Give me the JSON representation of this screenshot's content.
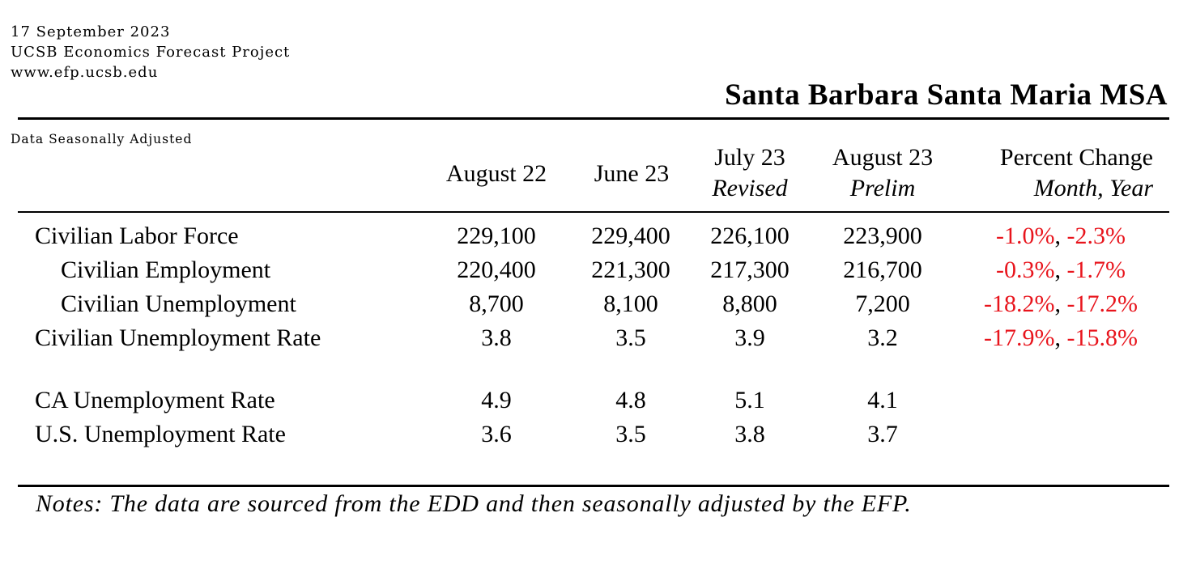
{
  "header": {
    "date": "17 September 2023",
    "org": "UCSB Economics Forecast Project",
    "url": "www.efp.ucsb.edu",
    "title": "Santa Barbara Santa Maria MSA"
  },
  "table": {
    "adjustment_note": "Data Seasonally Adjusted",
    "columns": [
      {
        "label": "August 22",
        "sub": ""
      },
      {
        "label": "June 23",
        "sub": ""
      },
      {
        "label": "July 23",
        "sub": "Revised"
      },
      {
        "label": "August 23",
        "sub": "Prelim"
      },
      {
        "label": "Percent Change",
        "sub": "Month, Year"
      }
    ],
    "rows": [
      {
        "label": "Civilian Labor Force",
        "values": [
          "229,100",
          "229,400",
          "226,100",
          "223,900"
        ],
        "pct_month": "-1.0%",
        "pct_year": "-2.3%"
      },
      {
        "label": "Civilian Employment",
        "values": [
          "220,400",
          "221,300",
          "217,300",
          "216,700"
        ],
        "pct_month": "-0.3%",
        "pct_year": "-1.7%"
      },
      {
        "label": "Civilian Unemployment",
        "values": [
          "8,700",
          "8,100",
          "8,800",
          "7,200"
        ],
        "pct_month": "-18.2%",
        "pct_year": "-17.2%"
      },
      {
        "label": "Civilian Unemployment Rate",
        "values": [
          "3.8",
          "3.5",
          "3.9",
          "3.2"
        ],
        "pct_month": "-17.9%",
        "pct_year": "-15.8%"
      },
      {
        "label": "CA Unemployment Rate",
        "values": [
          "4.9",
          "4.8",
          "5.1",
          "4.1"
        ]
      },
      {
        "label": "U.S. Unemployment Rate",
        "values": [
          "3.6",
          "3.5",
          "3.8",
          "3.7"
        ]
      }
    ],
    "pct_separator": ", "
  },
  "notes": "Notes: The data are sourced from the EDD and then seasonally adjusted by the EFP."
}
